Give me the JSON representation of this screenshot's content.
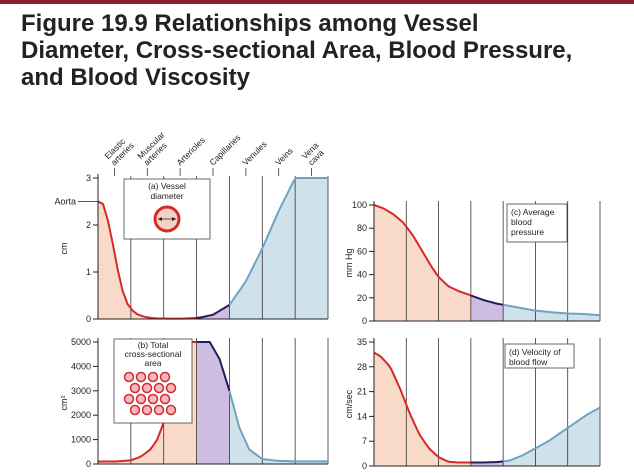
{
  "slide": {
    "title_lines": [
      "Figure 19.9  Relationships among Vessel",
      "Diameter, Cross-sectional Area, Blood Pressure,",
      "and Blood Viscosity"
    ]
  },
  "vessels": [
    [
      "Elastic",
      "arteries"
    ],
    [
      "Muscular",
      "arteries"
    ],
    [
      "Arterioles"
    ],
    [
      "Capillaries"
    ],
    [
      "Venules"
    ],
    [
      "Veins"
    ],
    [
      "Vena",
      "cava"
    ]
  ],
  "colors": {
    "arterial_fill": "#f9d9c8",
    "capillary_fill": "#cdbde0",
    "venous_fill": "#cfe2ec",
    "arterial_curve": "#d42a2a",
    "capillary_curve": "#2a1a5e",
    "venous_curve": "#6fa3bf"
  },
  "chart_data": [
    {
      "type": "area",
      "panel_label": "(a)",
      "title_lines": [
        "Vessel",
        "diameter"
      ],
      "ylabel": "cm",
      "yticks": [
        "0",
        "1",
        "2",
        "3"
      ],
      "ylim": [
        0,
        3
      ],
      "annotation": "Aorta",
      "annotation_value": 2.5,
      "x": [
        0,
        0.15,
        0.3,
        0.45,
        0.6,
        0.75,
        0.9,
        1.05,
        1.2,
        1.4,
        1.6,
        1.8,
        2.0,
        2.2,
        2.5,
        2.8,
        3.1,
        3.5,
        4.0,
        4.5,
        5.0,
        5.5,
        6.0,
        6.5,
        7.0
      ],
      "y": [
        2.5,
        2.45,
        2.1,
        1.6,
        1.05,
        0.6,
        0.32,
        0.18,
        0.1,
        0.05,
        0.025,
        0.012,
        0.01,
        0.008,
        0.008,
        0.015,
        0.03,
        0.09,
        0.3,
        0.8,
        1.5,
        2.3,
        3.0,
        3.0,
        3.0
      ]
    },
    {
      "type": "area",
      "panel_label": "(b)",
      "title_lines": [
        "Total",
        "cross-sectional",
        "area"
      ],
      "ylabel": "cm²",
      "yticks": [
        "0",
        "1000",
        "2000",
        "3000",
        "4000",
        "5000"
      ],
      "ylim": [
        0,
        5000
      ],
      "x": [
        0,
        0.5,
        1.0,
        1.3,
        1.6,
        1.8,
        2.0,
        2.2,
        2.4,
        2.6,
        2.8,
        3.0,
        3.2,
        3.4,
        3.7,
        4.0,
        4.3,
        4.6,
        5.0,
        5.5,
        6.0,
        6.5,
        7.0
      ],
      "y": [
        100,
        100,
        150,
        300,
        600,
        1000,
        1700,
        2500,
        3500,
        4500,
        5000,
        5100,
        5100,
        5000,
        4300,
        3000,
        1500,
        600,
        200,
        130,
        110,
        110,
        110
      ]
    },
    {
      "type": "area",
      "panel_label": "(c)",
      "title_lines": [
        "Average",
        "blood",
        "pressure"
      ],
      "ylabel": "mm Hg",
      "yticks": [
        "0",
        "20",
        "40",
        "60",
        "80",
        "100"
      ],
      "ylim": [
        0,
        100
      ],
      "x": [
        0,
        0.3,
        0.6,
        0.9,
        1.2,
        1.5,
        1.8,
        2.0,
        2.3,
        2.6,
        3.0,
        3.4,
        3.8,
        4.2,
        4.6,
        5.0,
        5.5,
        6.0,
        6.5,
        7.0
      ],
      "y": [
        100,
        97,
        92,
        85,
        74,
        60,
        46,
        38,
        30,
        26,
        22,
        18,
        15,
        13,
        11,
        9,
        7.5,
        6.5,
        6,
        5
      ]
    },
    {
      "type": "area",
      "panel_label": "(d)",
      "title_lines": [
        "Velocity of",
        "blood flow"
      ],
      "ylabel": "cm/sec",
      "yticks": [
        "0",
        "7",
        "14",
        "21",
        "28",
        "35"
      ],
      "ylim": [
        0,
        35
      ],
      "x": [
        0,
        0.2,
        0.5,
        0.8,
        1.1,
        1.4,
        1.7,
        2.0,
        2.3,
        2.6,
        3.0,
        3.4,
        3.8,
        4.2,
        4.6,
        5.0,
        5.4,
        5.8,
        6.2,
        6.6,
        7.0
      ],
      "y": [
        32,
        31,
        28,
        22,
        15,
        9,
        5,
        2.5,
        1.2,
        1.0,
        1.0,
        1.0,
        1.1,
        1.5,
        3,
        5,
        7,
        9.5,
        12,
        14.5,
        16.5
      ]
    }
  ]
}
